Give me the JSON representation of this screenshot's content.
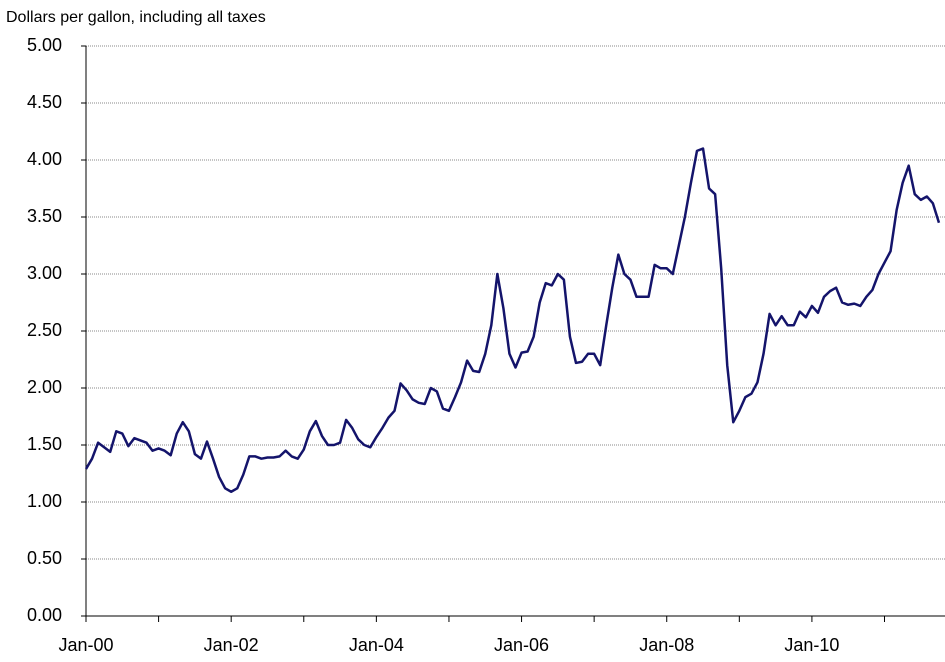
{
  "chart_data": {
    "type": "line",
    "y_label": "Dollars per gallon, including all taxes",
    "color": "#14146b",
    "x": [
      "2000-01",
      "2000-02",
      "2000-03",
      "2000-04",
      "2000-05",
      "2000-06",
      "2000-07",
      "2000-08",
      "2000-09",
      "2000-10",
      "2000-11",
      "2000-12",
      "2001-01",
      "2001-02",
      "2001-03",
      "2001-04",
      "2001-05",
      "2001-06",
      "2001-07",
      "2001-08",
      "2001-09",
      "2001-10",
      "2001-11",
      "2001-12",
      "2002-01",
      "2002-02",
      "2002-03",
      "2002-04",
      "2002-05",
      "2002-06",
      "2002-07",
      "2002-08",
      "2002-09",
      "2002-10",
      "2002-11",
      "2002-12",
      "2003-01",
      "2003-02",
      "2003-03",
      "2003-04",
      "2003-05",
      "2003-06",
      "2003-07",
      "2003-08",
      "2003-09",
      "2003-10",
      "2003-11",
      "2003-12",
      "2004-01",
      "2004-02",
      "2004-03",
      "2004-04",
      "2004-05",
      "2004-06",
      "2004-07",
      "2004-08",
      "2004-09",
      "2004-10",
      "2004-11",
      "2004-12",
      "2005-01",
      "2005-02",
      "2005-03",
      "2005-04",
      "2005-05",
      "2005-06",
      "2005-07",
      "2005-08",
      "2005-09",
      "2005-10",
      "2005-11",
      "2005-12",
      "2006-01",
      "2006-02",
      "2006-03",
      "2006-04",
      "2006-05",
      "2006-06",
      "2006-07",
      "2006-08",
      "2006-09",
      "2006-10",
      "2006-11",
      "2006-12",
      "2007-01",
      "2007-02",
      "2007-03",
      "2007-04",
      "2007-05",
      "2007-06",
      "2007-07",
      "2007-08",
      "2007-09",
      "2007-10",
      "2007-11",
      "2007-12",
      "2008-01",
      "2008-02",
      "2008-03",
      "2008-04",
      "2008-05",
      "2008-06",
      "2008-07",
      "2008-08",
      "2008-09",
      "2008-10",
      "2008-11",
      "2008-12",
      "2009-01",
      "2009-02",
      "2009-03",
      "2009-04",
      "2009-05",
      "2009-06",
      "2009-07",
      "2009-08",
      "2009-09",
      "2009-10",
      "2009-11",
      "2009-12",
      "2010-01",
      "2010-02",
      "2010-03",
      "2010-04",
      "2010-05",
      "2010-06",
      "2010-07",
      "2010-08",
      "2010-09",
      "2010-10",
      "2010-11",
      "2010-12",
      "2011-01",
      "2011-02",
      "2011-03",
      "2011-04",
      "2011-05",
      "2011-06",
      "2011-07",
      "2011-08",
      "2011-09",
      "2011-10"
    ],
    "values": [
      1.29,
      1.38,
      1.52,
      1.48,
      1.44,
      1.62,
      1.6,
      1.49,
      1.56,
      1.54,
      1.52,
      1.45,
      1.47,
      1.45,
      1.41,
      1.6,
      1.7,
      1.62,
      1.42,
      1.38,
      1.53,
      1.38,
      1.22,
      1.12,
      1.09,
      1.12,
      1.24,
      1.4,
      1.4,
      1.38,
      1.39,
      1.39,
      1.4,
      1.45,
      1.4,
      1.38,
      1.46,
      1.62,
      1.71,
      1.58,
      1.5,
      1.5,
      1.52,
      1.72,
      1.65,
      1.55,
      1.5,
      1.48,
      1.57,
      1.65,
      1.74,
      1.8,
      2.04,
      1.98,
      1.9,
      1.87,
      1.86,
      2.0,
      1.97,
      1.82,
      1.8,
      1.92,
      2.05,
      2.24,
      2.15,
      2.14,
      2.3,
      2.55,
      3.0,
      2.7,
      2.3,
      2.18,
      2.31,
      2.32,
      2.45,
      2.75,
      2.92,
      2.9,
      3.0,
      2.95,
      2.45,
      2.22,
      2.23,
      2.3,
      2.3,
      2.2,
      2.55,
      2.88,
      3.17,
      3.0,
      2.95,
      2.8,
      2.8,
      2.8,
      3.08,
      3.05,
      3.05,
      3.0,
      3.25,
      3.5,
      3.8,
      4.08,
      4.1,
      3.75,
      3.7,
      3.05,
      2.2,
      1.7,
      1.8,
      1.92,
      1.95,
      2.05,
      2.3,
      2.65,
      2.55,
      2.63,
      2.55,
      2.55,
      2.67,
      2.62,
      2.72,
      2.66,
      2.8,
      2.85,
      2.88,
      2.75,
      2.73,
      2.74,
      2.72,
      2.8,
      2.86,
      3.0,
      3.1,
      3.2,
      3.56,
      3.8,
      3.95,
      3.7,
      3.65,
      3.68,
      3.62,
      3.45
    ],
    "xlim": [
      "2000-01",
      "2011-11"
    ],
    "xticks": [
      {
        "value": "2000-01",
        "label": "Jan-00"
      },
      {
        "value": "2002-01",
        "label": "Jan-02"
      },
      {
        "value": "2004-01",
        "label": "Jan-04"
      },
      {
        "value": "2006-01",
        "label": "Jan-06"
      },
      {
        "value": "2008-01",
        "label": "Jan-08"
      },
      {
        "value": "2010-01",
        "label": "Jan-10"
      }
    ],
    "xminorticks": [
      "2001-01",
      "2003-01",
      "2005-01",
      "2007-01",
      "2009-01",
      "2011-01"
    ],
    "ylim": [
      0,
      5
    ],
    "yticks": [
      {
        "value": 0,
        "label": "0.00"
      },
      {
        "value": 0.5,
        "label": "0.50"
      },
      {
        "value": 1,
        "label": "1.00"
      },
      {
        "value": 1.5,
        "label": "1.50"
      },
      {
        "value": 2,
        "label": "2.00"
      },
      {
        "value": 2.5,
        "label": "2.50"
      },
      {
        "value": 3,
        "label": "3.00"
      },
      {
        "value": 3.5,
        "label": "3.50"
      },
      {
        "value": 4,
        "label": "4.00"
      },
      {
        "value": 4.5,
        "label": "4.50"
      },
      {
        "value": 5,
        "label": "5.00"
      }
    ],
    "grid": true
  }
}
